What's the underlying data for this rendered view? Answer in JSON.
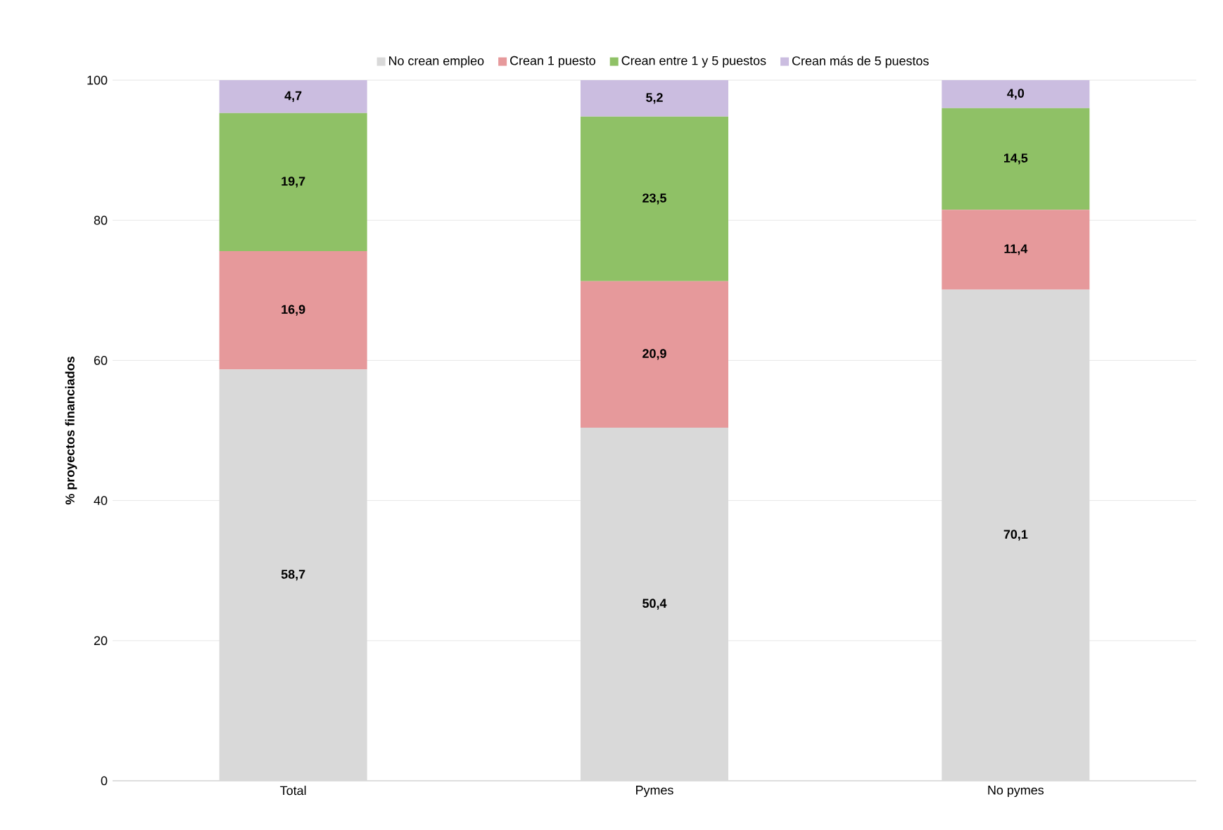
{
  "chart_data": {
    "type": "bar",
    "stacked": true,
    "ylabel": "% proyectos financiados",
    "categories": [
      "Total",
      "Pymes",
      "No pymes"
    ],
    "series": [
      {
        "name": "No crean empleo",
        "color": "#d9d9d9",
        "values": [
          58.7,
          50.4,
          70.1
        ],
        "value_labels": [
          "58,7",
          "50,4",
          "70,1"
        ]
      },
      {
        "name": "Crean 1 puesto",
        "color": "#e6999b",
        "values": [
          16.9,
          20.9,
          11.4
        ],
        "value_labels": [
          "16,9",
          "20,9",
          "11,4"
        ]
      },
      {
        "name": "Crean entre 1 y 5 puestos",
        "color": "#8fc166",
        "values": [
          19.7,
          23.5,
          14.5
        ],
        "value_labels": [
          "19,7",
          "23,5",
          "14,5"
        ]
      },
      {
        "name": "Crean más de 5 puestos",
        "color": "#cbbde0",
        "values": [
          4.7,
          5.2,
          4.0
        ],
        "value_labels": [
          "4,7",
          "5,2",
          "4,0"
        ]
      }
    ],
    "ylim": [
      0,
      100
    ],
    "yticks": [
      0,
      20,
      40,
      60,
      80,
      100
    ],
    "grid": "y",
    "legend": "top"
  }
}
